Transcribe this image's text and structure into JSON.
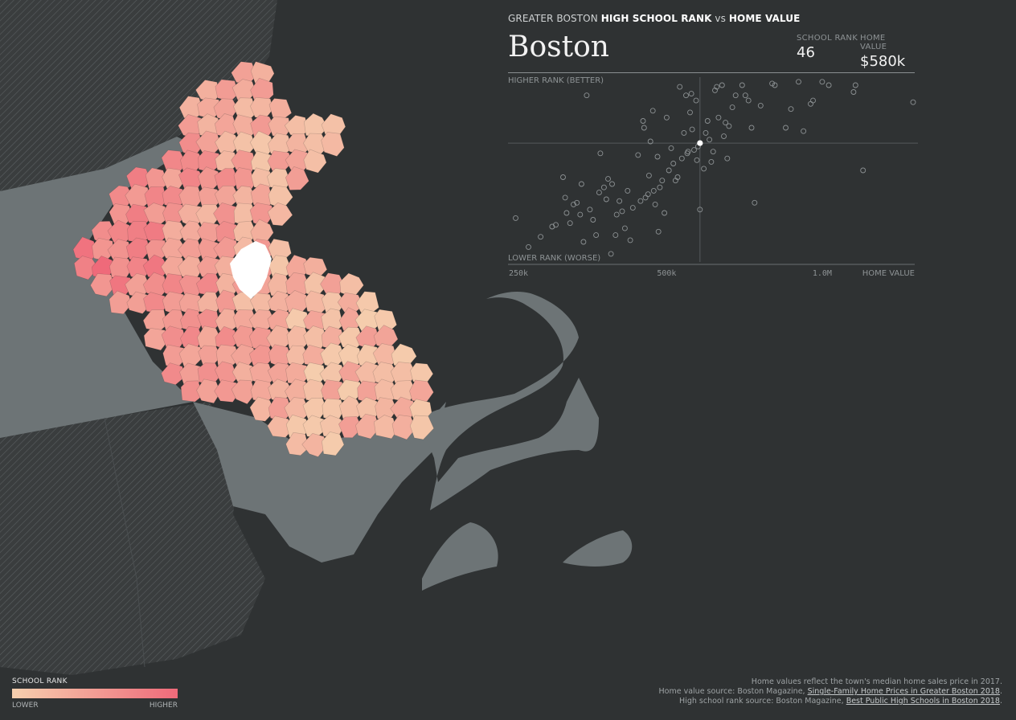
{
  "header": {
    "super_prefix": "GREATER BOSTON ",
    "super_a": "HIGH SCHOOL RANK",
    "super_vs": " vs ",
    "super_b": "HOME VALUE",
    "town": "Boston",
    "rank_label": "SCHOOL RANK",
    "rank_value": "46",
    "value_label": "HOME VALUE",
    "value_value": "$580k"
  },
  "axes": {
    "top_label": "HIGHER RANK (BETTER)",
    "bottom_label": "LOWER RANK (WORSE)",
    "x_ticks": [
      "250k",
      "500k",
      "1.0M"
    ],
    "x_title": "HOME VALUE"
  },
  "chart_data": {
    "type": "scatter",
    "x_scale": "log",
    "xlim": [
      250000,
      1500000
    ],
    "ylim": [
      0,
      100
    ],
    "selected": {
      "x": 580000,
      "y": 66
    },
    "points": [
      {
        "x": 255000,
        "y": 22
      },
      {
        "x": 270000,
        "y": 5
      },
      {
        "x": 285000,
        "y": 11
      },
      {
        "x": 300000,
        "y": 17
      },
      {
        "x": 305000,
        "y": 18
      },
      {
        "x": 315000,
        "y": 46
      },
      {
        "x": 318000,
        "y": 34
      },
      {
        "x": 320000,
        "y": 25
      },
      {
        "x": 325000,
        "y": 19
      },
      {
        "x": 330000,
        "y": 30
      },
      {
        "x": 335000,
        "y": 31
      },
      {
        "x": 340000,
        "y": 24
      },
      {
        "x": 342000,
        "y": 42
      },
      {
        "x": 345000,
        "y": 8
      },
      {
        "x": 350000,
        "y": 94
      },
      {
        "x": 355000,
        "y": 27
      },
      {
        "x": 360000,
        "y": 21
      },
      {
        "x": 365000,
        "y": 12
      },
      {
        "x": 370000,
        "y": 37
      },
      {
        "x": 372000,
        "y": 60
      },
      {
        "x": 378000,
        "y": 40
      },
      {
        "x": 382000,
        "y": 33
      },
      {
        "x": 385000,
        "y": 45
      },
      {
        "x": 390000,
        "y": 1
      },
      {
        "x": 392000,
        "y": 42
      },
      {
        "x": 398000,
        "y": 12
      },
      {
        "x": 400000,
        "y": 24
      },
      {
        "x": 405000,
        "y": 32
      },
      {
        "x": 410000,
        "y": 26
      },
      {
        "x": 415000,
        "y": 16
      },
      {
        "x": 420000,
        "y": 38
      },
      {
        "x": 425000,
        "y": 9
      },
      {
        "x": 430000,
        "y": 28
      },
      {
        "x": 440000,
        "y": 59
      },
      {
        "x": 445000,
        "y": 32
      },
      {
        "x": 450000,
        "y": 79
      },
      {
        "x": 452000,
        "y": 75
      },
      {
        "x": 455000,
        "y": 34
      },
      {
        "x": 460000,
        "y": 36
      },
      {
        "x": 462000,
        "y": 47
      },
      {
        "x": 465000,
        "y": 67
      },
      {
        "x": 470000,
        "y": 85
      },
      {
        "x": 472000,
        "y": 38
      },
      {
        "x": 475000,
        "y": 30
      },
      {
        "x": 480000,
        "y": 58
      },
      {
        "x": 482000,
        "y": 14
      },
      {
        "x": 485000,
        "y": 40
      },
      {
        "x": 490000,
        "y": 44
      },
      {
        "x": 495000,
        "y": 25
      },
      {
        "x": 500000,
        "y": 81
      },
      {
        "x": 505000,
        "y": 50
      },
      {
        "x": 510000,
        "y": 63
      },
      {
        "x": 515000,
        "y": 54
      },
      {
        "x": 520000,
        "y": 44
      },
      {
        "x": 525000,
        "y": 46
      },
      {
        "x": 530000,
        "y": 99
      },
      {
        "x": 535000,
        "y": 57
      },
      {
        "x": 540000,
        "y": 72
      },
      {
        "x": 545000,
        "y": 94
      },
      {
        "x": 548000,
        "y": 60
      },
      {
        "x": 550000,
        "y": 61
      },
      {
        "x": 555000,
        "y": 84
      },
      {
        "x": 558000,
        "y": 95
      },
      {
        "x": 560000,
        "y": 74
      },
      {
        "x": 565000,
        "y": 62
      },
      {
        "x": 570000,
        "y": 91
      },
      {
        "x": 572000,
        "y": 56
      },
      {
        "x": 575000,
        "y": 64
      },
      {
        "x": 580000,
        "y": 27
      },
      {
        "x": 590000,
        "y": 51
      },
      {
        "x": 595000,
        "y": 72
      },
      {
        "x": 600000,
        "y": 79
      },
      {
        "x": 605000,
        "y": 68
      },
      {
        "x": 610000,
        "y": 55
      },
      {
        "x": 615000,
        "y": 61
      },
      {
        "x": 620000,
        "y": 97
      },
      {
        "x": 625000,
        "y": 99
      },
      {
        "x": 630000,
        "y": 81
      },
      {
        "x": 640000,
        "y": 100
      },
      {
        "x": 645000,
        "y": 70
      },
      {
        "x": 650000,
        "y": 78
      },
      {
        "x": 655000,
        "y": 57
      },
      {
        "x": 660000,
        "y": 76
      },
      {
        "x": 670000,
        "y": 87
      },
      {
        "x": 680000,
        "y": 94
      },
      {
        "x": 700000,
        "y": 100
      },
      {
        "x": 710000,
        "y": 94
      },
      {
        "x": 720000,
        "y": 91
      },
      {
        "x": 730000,
        "y": 75
      },
      {
        "x": 740000,
        "y": 31
      },
      {
        "x": 760000,
        "y": 88
      },
      {
        "x": 800000,
        "y": 101
      },
      {
        "x": 810000,
        "y": 100
      },
      {
        "x": 850000,
        "y": 75
      },
      {
        "x": 870000,
        "y": 86
      },
      {
        "x": 900000,
        "y": 102
      },
      {
        "x": 920000,
        "y": 73
      },
      {
        "x": 950000,
        "y": 89
      },
      {
        "x": 960000,
        "y": 91
      },
      {
        "x": 1000000,
        "y": 102
      },
      {
        "x": 1030000,
        "y": 100
      },
      {
        "x": 1150000,
        "y": 96
      },
      {
        "x": 1160000,
        "y": 100
      },
      {
        "x": 1200000,
        "y": 50
      },
      {
        "x": 1500000,
        "y": 90
      }
    ]
  },
  "legend": {
    "title": "SCHOOL RANK",
    "low": "LOWER",
    "high": "HIGHER",
    "low_color": "#f5cfae",
    "high_color": "#ef6a7a"
  },
  "notes": {
    "line1": "Home values reflect the town's median home sales price in 2017.",
    "line2_prefix": "Home value source: Boston Magazine, ",
    "line2_link": "Single-Family Home Prices in Greater Boston 2018",
    "line2_suffix": ".",
    "line3_prefix": "High school rank source: Boston Magazine, ",
    "line3_link": "Best Public High Schools in Boston 2018",
    "line3_suffix": "."
  },
  "colors": {
    "ocean": "#2f3233",
    "land": "#6d7476",
    "selected_town": "#ffffff"
  }
}
